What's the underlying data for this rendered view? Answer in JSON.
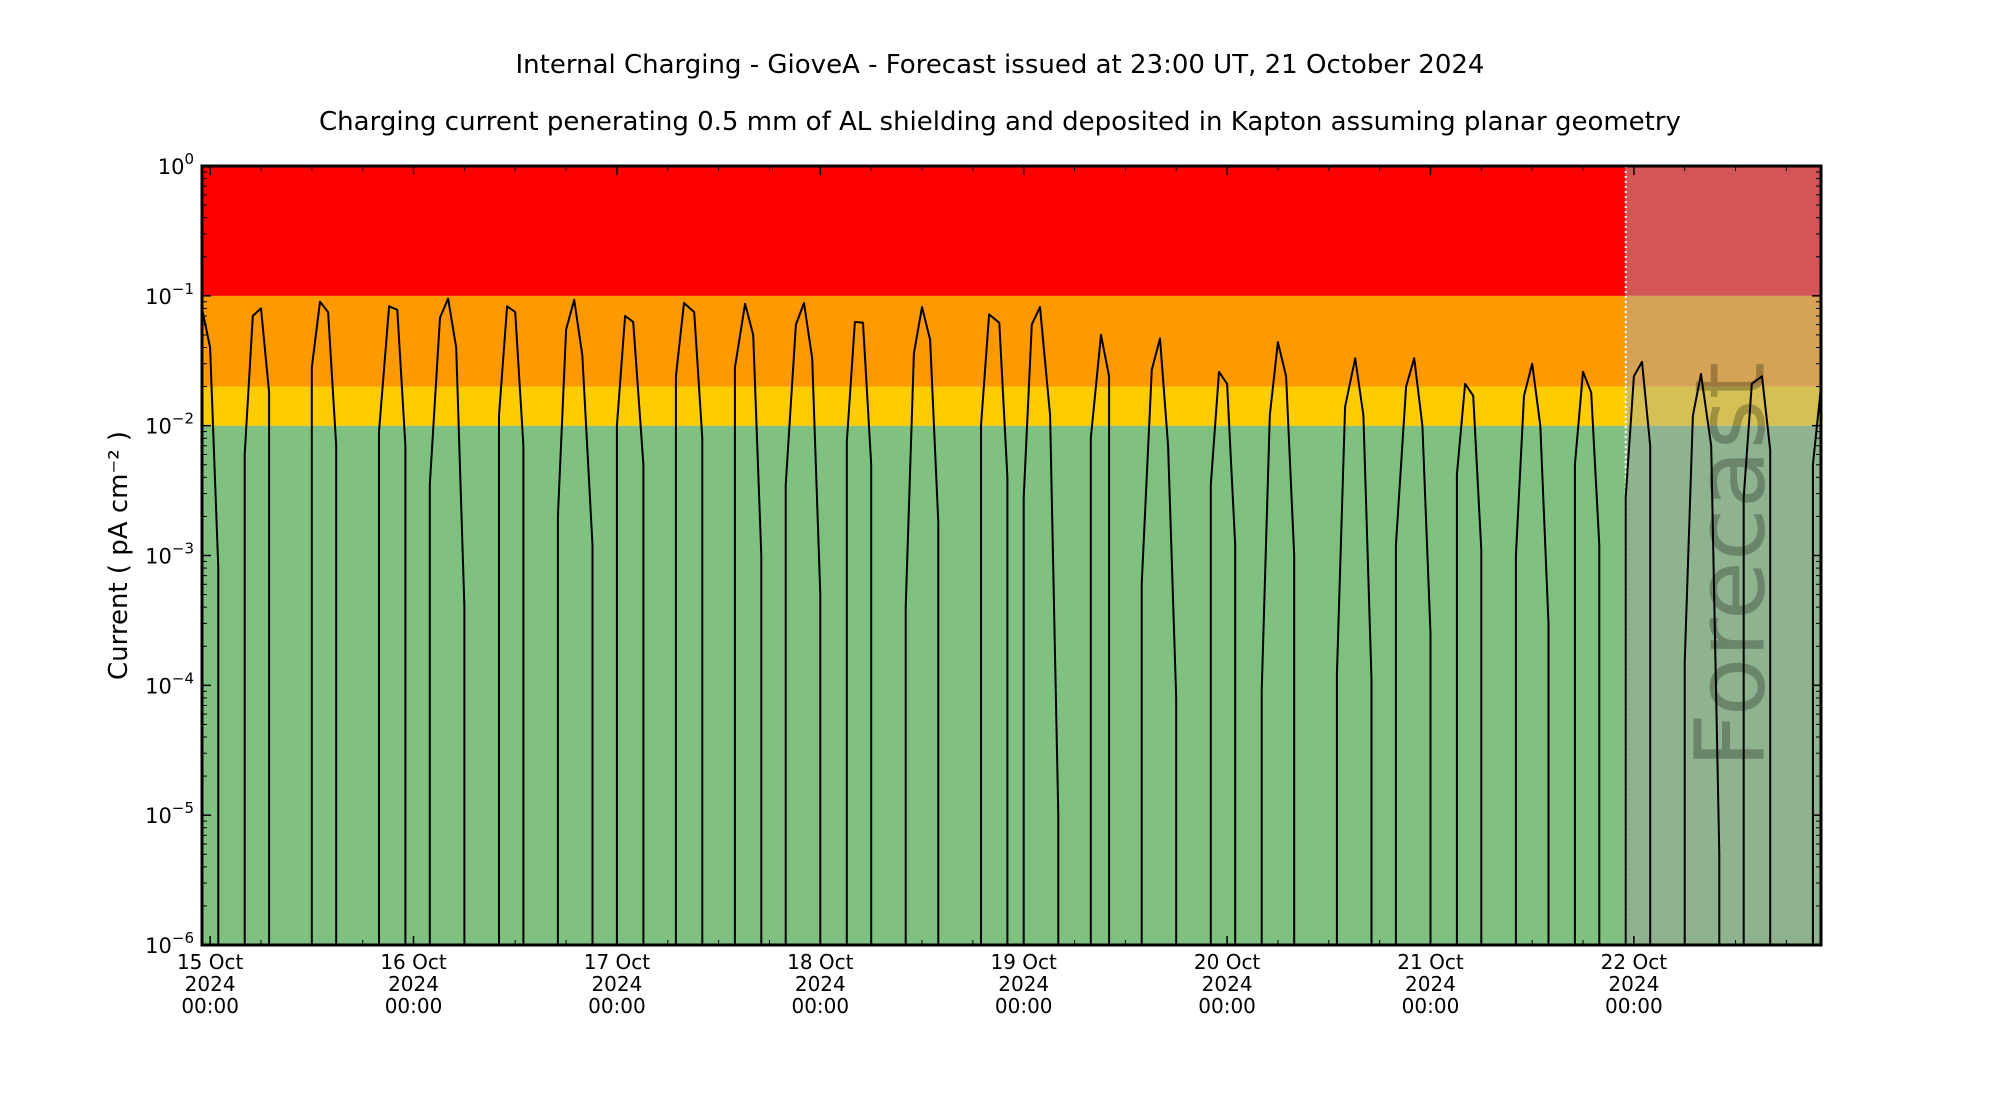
{
  "chart_data": {
    "type": "line",
    "title": "Internal Charging - GioveA - Forecast issued at 23:00 UT, 21 October 2024",
    "subtitle": "Charging current penerating 0.5 mm of AL shielding and deposited in Kapton assuming planar geometry",
    "ylabel": "Current ( pA cm⁻² )",
    "yscale": "log",
    "ylim_exponents": [
      -6,
      0
    ],
    "y_ticks": [
      {
        "base": "10",
        "exp": "−6"
      },
      {
        "base": "10",
        "exp": "−5"
      },
      {
        "base": "10",
        "exp": "−4"
      },
      {
        "base": "10",
        "exp": "−3"
      },
      {
        "base": "10",
        "exp": "−2"
      },
      {
        "base": "10",
        "exp": "−1"
      },
      {
        "base": "10",
        "exp": "0"
      }
    ],
    "x_ticks": [
      {
        "day": 0,
        "line1": "15 Oct",
        "line2": "2024",
        "line3": "00:00"
      },
      {
        "day": 1,
        "line1": "16 Oct",
        "line2": "2024",
        "line3": "00:00"
      },
      {
        "day": 2,
        "line1": "17 Oct",
        "line2": "2024",
        "line3": "00:00"
      },
      {
        "day": 3,
        "line1": "18 Oct",
        "line2": "2024",
        "line3": "00:00"
      },
      {
        "day": 4,
        "line1": "19 Oct",
        "line2": "2024",
        "line3": "00:00"
      },
      {
        "day": 5,
        "line1": "20 Oct",
        "line2": "2024",
        "line3": "00:00"
      },
      {
        "day": 6,
        "line1": "21 Oct",
        "line2": "2024",
        "line3": "00:00"
      },
      {
        "day": 7,
        "line1": "22 Oct",
        "line2": "2024",
        "line3": "00:00"
      }
    ],
    "x_range_days": [
      -0.04,
      7.92
    ],
    "forecast_start_day": 6.96,
    "forecast_label": "Forecast",
    "bands": [
      {
        "from": 1e-06,
        "to": 0.01,
        "color": "#80c080",
        "forecast_color": "#8fb28f"
      },
      {
        "from": 0.01,
        "to": 0.02,
        "color": "#ffcc00",
        "forecast_color": "#d4c055"
      },
      {
        "from": 0.02,
        "to": 0.1,
        "color": "#ff9900",
        "forecast_color": "#d4a355"
      },
      {
        "from": 0.1,
        "to": 1,
        "color": "#ff0000",
        "forecast_color": "#d45555"
      }
    ],
    "series": [
      {
        "line_color": "#000000",
        "points": [
          [
            -0.04,
            0.08
          ],
          [
            0.0,
            0.04
          ],
          [
            0.04,
            0.0008
          ],
          [
            0.04,
            1e-06
          ],
          [
            0.17,
            1e-06
          ],
          [
            0.17,
            0.006
          ],
          [
            0.21,
            0.07
          ],
          [
            0.25,
            0.08
          ],
          [
            0.29,
            0.018
          ],
          [
            0.29,
            1e-06
          ],
          [
            0.5,
            1e-06
          ],
          [
            0.5,
            0.028
          ],
          [
            0.54,
            0.09
          ],
          [
            0.58,
            0.075
          ],
          [
            0.62,
            0.007
          ],
          [
            0.62,
            1e-06
          ],
          [
            0.83,
            1e-06
          ],
          [
            0.83,
            0.009
          ],
          [
            0.88,
            0.083
          ],
          [
            0.92,
            0.078
          ],
          [
            0.96,
            0.007
          ],
          [
            0.96,
            1e-06
          ],
          [
            1.08,
            1e-06
          ],
          [
            1.08,
            0.0035
          ],
          [
            1.13,
            0.068
          ],
          [
            1.17,
            0.095
          ],
          [
            1.21,
            0.04
          ],
          [
            1.25,
            0.0004
          ],
          [
            1.25,
            1e-06
          ],
          [
            1.42,
            1e-06
          ],
          [
            1.42,
            0.012
          ],
          [
            1.46,
            0.083
          ],
          [
            1.5,
            0.075
          ],
          [
            1.54,
            0.007
          ],
          [
            1.54,
            1e-06
          ],
          [
            1.71,
            1e-06
          ],
          [
            1.71,
            0.002
          ],
          [
            1.75,
            0.055
          ],
          [
            1.79,
            0.093
          ],
          [
            1.83,
            0.035
          ],
          [
            1.88,
            0.0012
          ],
          [
            1.88,
            1e-06
          ],
          [
            2.0,
            1e-06
          ],
          [
            2.0,
            0.01
          ],
          [
            2.04,
            0.07
          ],
          [
            2.08,
            0.063
          ],
          [
            2.13,
            0.005
          ],
          [
            2.13,
            1e-06
          ],
          [
            2.29,
            1e-06
          ],
          [
            2.29,
            0.024
          ],
          [
            2.33,
            0.088
          ],
          [
            2.38,
            0.075
          ],
          [
            2.42,
            0.008
          ],
          [
            2.42,
            1e-06
          ],
          [
            2.58,
            1e-06
          ],
          [
            2.58,
            0.028
          ],
          [
            2.63,
            0.087
          ],
          [
            2.67,
            0.05
          ],
          [
            2.71,
            0.001
          ],
          [
            2.71,
            1e-06
          ],
          [
            2.83,
            1e-06
          ],
          [
            2.83,
            0.0035
          ],
          [
            2.88,
            0.06
          ],
          [
            2.92,
            0.088
          ],
          [
            2.96,
            0.033
          ],
          [
            3.0,
            0.0005
          ],
          [
            3.0,
            1e-06
          ],
          [
            3.13,
            1e-06
          ],
          [
            3.13,
            0.0075
          ],
          [
            3.17,
            0.063
          ],
          [
            3.21,
            0.062
          ],
          [
            3.25,
            0.005
          ],
          [
            3.25,
            1e-06
          ],
          [
            3.42,
            1e-06
          ],
          [
            3.42,
            0.0004
          ],
          [
            3.46,
            0.036
          ],
          [
            3.5,
            0.082
          ],
          [
            3.54,
            0.046
          ],
          [
            3.58,
            0.0018
          ],
          [
            3.58,
            1e-06
          ],
          [
            3.79,
            1e-06
          ],
          [
            3.79,
            0.01
          ],
          [
            3.83,
            0.072
          ],
          [
            3.88,
            0.062
          ],
          [
            3.92,
            0.004
          ],
          [
            3.92,
            1e-06
          ],
          [
            4.0,
            1e-06
          ],
          [
            4.0,
            0.0028
          ],
          [
            4.04,
            0.06
          ],
          [
            4.08,
            0.082
          ],
          [
            4.13,
            0.012
          ],
          [
            4.17,
            1e-05
          ],
          [
            4.17,
            1e-06
          ],
          [
            4.33,
            1e-06
          ],
          [
            4.33,
            0.008
          ],
          [
            4.38,
            0.05
          ],
          [
            4.42,
            0.024
          ],
          [
            4.42,
            1e-06
          ],
          [
            4.58,
            1e-06
          ],
          [
            4.58,
            0.0006
          ],
          [
            4.63,
            0.027
          ],
          [
            4.67,
            0.047
          ],
          [
            4.71,
            0.007
          ],
          [
            4.75,
            8e-05
          ],
          [
            4.75,
            1e-06
          ],
          [
            4.92,
            1e-06
          ],
          [
            4.92,
            0.0035
          ],
          [
            4.96,
            0.026
          ],
          [
            5.0,
            0.021
          ],
          [
            5.04,
            0.0012
          ],
          [
            5.04,
            1e-06
          ],
          [
            5.17,
            1e-06
          ],
          [
            5.17,
            9e-05
          ],
          [
            5.21,
            0.012
          ],
          [
            5.25,
            0.044
          ],
          [
            5.29,
            0.024
          ],
          [
            5.33,
            0.001
          ],
          [
            5.33,
            1e-06
          ],
          [
            5.54,
            1e-06
          ],
          [
            5.54,
            0.00012
          ],
          [
            5.58,
            0.014
          ],
          [
            5.63,
            0.033
          ],
          [
            5.67,
            0.012
          ],
          [
            5.71,
            0.00011
          ],
          [
            5.71,
            1e-06
          ],
          [
            5.83,
            1e-06
          ],
          [
            5.83,
            0.0012
          ],
          [
            5.88,
            0.02
          ],
          [
            5.92,
            0.033
          ],
          [
            5.96,
            0.01
          ],
          [
            6.0,
            0.00025
          ],
          [
            6.0,
            1e-06
          ],
          [
            6.13,
            1e-06
          ],
          [
            6.13,
            0.0042
          ],
          [
            6.17,
            0.021
          ],
          [
            6.21,
            0.017
          ],
          [
            6.25,
            0.0011
          ],
          [
            6.25,
            1e-06
          ],
          [
            6.42,
            1e-06
          ],
          [
            6.42,
            0.001
          ],
          [
            6.46,
            0.017
          ],
          [
            6.5,
            0.03
          ],
          [
            6.54,
            0.01
          ],
          [
            6.58,
            0.0003
          ],
          [
            6.58,
            1e-06
          ],
          [
            6.71,
            1e-06
          ],
          [
            6.71,
            0.005
          ],
          [
            6.75,
            0.026
          ],
          [
            6.79,
            0.018
          ],
          [
            6.83,
            0.0012
          ],
          [
            6.83,
            1e-06
          ],
          [
            6.96,
            1e-06
          ],
          [
            6.96,
            0.0028
          ],
          [
            7.0,
            0.024
          ],
          [
            7.04,
            0.031
          ],
          [
            7.08,
            0.007
          ],
          [
            7.08,
            1e-06
          ],
          [
            7.25,
            1e-06
          ],
          [
            7.25,
            0.00015
          ],
          [
            7.29,
            0.012
          ],
          [
            7.33,
            0.025
          ],
          [
            7.38,
            0.007
          ],
          [
            7.42,
            5e-06
          ],
          [
            7.42,
            1e-06
          ],
          [
            7.54,
            1e-06
          ],
          [
            7.54,
            0.0028
          ],
          [
            7.58,
            0.021
          ],
          [
            7.63,
            0.024
          ],
          [
            7.67,
            0.0065
          ],
          [
            7.67,
            1e-06
          ],
          [
            7.88,
            1e-06
          ],
          [
            7.88,
            0.005
          ],
          [
            7.92,
            0.02
          ]
        ]
      }
    ]
  }
}
